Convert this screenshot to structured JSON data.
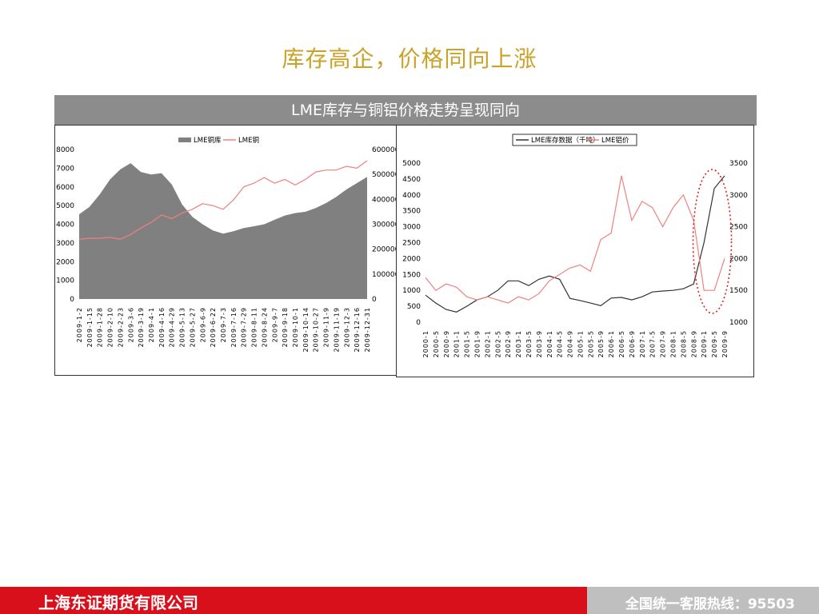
{
  "slide": {
    "title": "库存高企，价格同向上涨",
    "banner": "LME库存与铜铝价格走势呈现同向"
  },
  "footer": {
    "company": "上海东证期货有限公司",
    "hotline": "全国统一客服热线：95503"
  },
  "colors": {
    "title": "#c9a227",
    "banner": "#8c8c8c",
    "area": "#808080",
    "price_line": "#f08080",
    "stock_line": "#333333",
    "highlight": "#e02020",
    "footer_red": "#d8101c",
    "footer_gray": "#bfbfbf"
  },
  "chart_data": [
    {
      "type": "area",
      "legend": [
        "LME铜库",
        "LME铜"
      ],
      "legend_position": "top-center",
      "y_left_ticks": [
        "0",
        "1000",
        "2000",
        "3000",
        "4000",
        "5000",
        "6000",
        "7000",
        "8000"
      ],
      "y_right_ticks": [
        "0",
        "100000",
        "200000",
        "300000",
        "400000",
        "500000",
        "600000"
      ],
      "ylim_left": [
        0,
        8000
      ],
      "ylim_right": [
        0,
        600000
      ],
      "x_ticks": [
        "2009-1-2",
        "2009-1-15",
        "2009-1-28",
        "2009-2-10",
        "2009-2-23",
        "2009-3-6",
        "2009-3-19",
        "2009-4-1",
        "2009-4-16",
        "2009-4-29",
        "2009-5-13",
        "2009-5-27",
        "2009-6-9",
        "2009-6-22",
        "2009-7-3",
        "2009-7-16",
        "2009-7-29",
        "2009-8-11",
        "2009-8-24",
        "2009-9-7",
        "2009-9-18",
        "2009-10-1",
        "2009-10-14",
        "2009-10-27",
        "2009-11-9",
        "2009-11-19",
        "2009-12-3",
        "2009-12-16",
        "2009-12-31"
      ],
      "series": [
        {
          "name": "LME铜库",
          "axis": "right",
          "values": [
            340000,
            370000,
            420000,
            480000,
            520000,
            545000,
            510000,
            500000,
            505000,
            460000,
            380000,
            330000,
            300000,
            275000,
            262000,
            272000,
            285000,
            292000,
            300000,
            318000,
            335000,
            345000,
            350000,
            365000,
            385000,
            410000,
            440000,
            465000,
            490000
          ]
        },
        {
          "name": "LME铜",
          "axis": "left",
          "values": [
            3200,
            3250,
            3250,
            3300,
            3200,
            3450,
            3800,
            4100,
            4500,
            4300,
            4600,
            4800,
            5100,
            5000,
            4800,
            5300,
            6000,
            6200,
            6500,
            6200,
            6400,
            6100,
            6400,
            6800,
            6900,
            6900,
            7100,
            7000,
            7400
          ]
        }
      ]
    },
    {
      "type": "line",
      "legend": [
        "LME库存数据（千吨）",
        "LME铝价"
      ],
      "legend_position": "top-center",
      "y_left_ticks": [
        "0",
        "500",
        "1000",
        "1500",
        "2000",
        "2500",
        "3000",
        "3500",
        "4000",
        "4500",
        "5000"
      ],
      "y_right_ticks": [
        "1000",
        "1500",
        "2000",
        "2500",
        "3000",
        "3500"
      ],
      "ylim_left": [
        0,
        5000
      ],
      "ylim_right": [
        1000,
        3500
      ],
      "x_ticks": [
        "2000-1",
        "2000-5",
        "2000-9",
        "2001-1",
        "2001-5",
        "2001-9",
        "2002-1",
        "2002-5",
        "2002-9",
        "2003-1",
        "2003-5",
        "2003-9",
        "2004-1",
        "2004-5",
        "2004-9",
        "2005-1",
        "2005-5",
        "2005-9",
        "2006-1",
        "2006-5",
        "2006-9",
        "2007-1",
        "2007-5",
        "2007-9",
        "2008-1",
        "2008-5",
        "2008-9",
        "2009-1",
        "2009-5",
        "2009-9"
      ],
      "series": [
        {
          "name": "LME库存数据（千吨）",
          "axis": "left",
          "values": [
            850,
            600,
            400,
            320,
            500,
            700,
            800,
            1000,
            1300,
            1300,
            1150,
            1350,
            1450,
            1350,
            750,
            680,
            600,
            520,
            760,
            780,
            700,
            800,
            950,
            980,
            1000,
            1050,
            1200,
            2500,
            4200,
            4600
          ]
        },
        {
          "name": "LME铝价",
          "axis": "right",
          "values": [
            1700,
            1500,
            1600,
            1550,
            1400,
            1350,
            1400,
            1350,
            1300,
            1400,
            1350,
            1450,
            1650,
            1750,
            1850,
            1900,
            1800,
            2300,
            2400,
            3300,
            2600,
            2900,
            2800,
            2500,
            2800,
            3000,
            2600,
            1500,
            1500,
            2000
          ]
        }
      ],
      "annotation": "dashed ellipse highlighting 2009"
    }
  ]
}
